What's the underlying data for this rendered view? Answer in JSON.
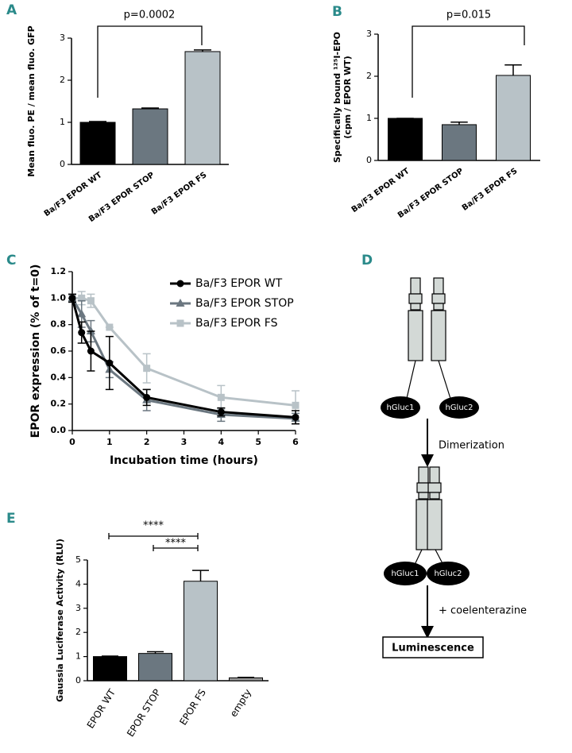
{
  "chart_data": [
    {
      "type": "bar",
      "panel": "A",
      "ylabel": [
        "Mean fluo. PE / mean fluo. GFP"
      ],
      "categories": [
        "Ba/F3 EPOR WT",
        "Ba/F3 EPOR STOP",
        "Ba/F3 EPOR FS"
      ],
      "values": [
        1.0,
        1.32,
        2.68
      ],
      "errors": [
        0.02,
        0.02,
        0.04
      ],
      "colors": [
        "#000000",
        "#6b7780",
        "#b8c2c7"
      ],
      "ylim": [
        0,
        3
      ],
      "yticks": [
        0,
        1,
        2,
        3
      ],
      "annotations": [
        "p=0.0002"
      ]
    },
    {
      "type": "bar",
      "panel": "B",
      "ylabel": [
        "Specifically bound ¹²⁵I-EPO",
        "(cpm / EPOR WT)"
      ],
      "categories": [
        "Ba/F3 EPOR WT",
        "Ba/F3 EPOR STOP",
        "Ba/F3 EPOR FS"
      ],
      "values": [
        1.0,
        0.85,
        2.02
      ],
      "errors": [
        0.0,
        0.06,
        0.25
      ],
      "colors": [
        "#000000",
        "#6b7780",
        "#b8c2c7"
      ],
      "ylim": [
        0,
        3
      ],
      "yticks": [
        0,
        1,
        2,
        3
      ],
      "annotations": [
        "p=0.015"
      ]
    },
    {
      "type": "line",
      "panel": "C",
      "xlabel": "Incubation time (hours)",
      "ylabel": [
        "EPOR expression  (% of t=0)"
      ],
      "x": [
        0,
        0.25,
        0.5,
        1,
        2,
        4,
        6
      ],
      "series": [
        {
          "name": "Ba/F3 EPOR WT",
          "color": "#000000",
          "marker": "circle",
          "values": [
            1.0,
            0.74,
            0.6,
            0.51,
            0.25,
            0.14,
            0.1
          ],
          "errors": [
            0.03,
            0.08,
            0.15,
            0.2,
            0.06,
            0.03,
            0.05
          ]
        },
        {
          "name": "Ba/F3 EPOR STOP",
          "color": "#6b7780",
          "marker": "triangle",
          "values": [
            1.0,
            0.88,
            0.75,
            0.46,
            0.23,
            0.12,
            0.09
          ],
          "errors": [
            0.03,
            0.1,
            0.08,
            0.06,
            0.08,
            0.05,
            0.04
          ]
        },
        {
          "name": "Ba/F3 EPOR FS",
          "color": "#b8c2c7",
          "marker": "square",
          "values": [
            1.0,
            1.0,
            0.98,
            0.78,
            0.47,
            0.25,
            0.19
          ],
          "errors": [
            0.03,
            0.05,
            0.05,
            0.0,
            0.11,
            0.09,
            0.11
          ]
        }
      ],
      "xlim": [
        0,
        6
      ],
      "xticks": [
        0,
        1,
        2,
        3,
        4,
        5,
        6
      ],
      "ylim": [
        0,
        1.2
      ],
      "yticks": [
        {
          "value": 0,
          "label": "0.0"
        },
        0.2,
        0.4,
        0.6,
        0.8,
        {
          "value": 1,
          "label": "1.0"
        },
        1.2
      ]
    },
    {
      "type": "bar",
      "panel": "E",
      "ylabel": [
        "Gaussia Luciferase Activity (RLU)"
      ],
      "categories": [
        "EPOR WT",
        "EPOR STOP",
        "EPOR FS",
        "empty"
      ],
      "values": [
        1.0,
        1.13,
        4.12,
        0.12
      ],
      "errors": [
        0.02,
        0.07,
        0.45,
        0.02
      ],
      "colors": [
        "#000000",
        "#6b7780",
        "#b8c2c7",
        "#9a9a9a"
      ],
      "ylim": [
        0,
        5
      ],
      "yticks": [
        0,
        1,
        2,
        3,
        4,
        5
      ],
      "annotations": [
        "****",
        "****"
      ]
    }
  ],
  "diagram": {
    "panel": "D",
    "labels": [
      "hGluc1",
      "hGluc2",
      "Dimerization",
      "hGluc1",
      "hGluc2",
      "+ coelenterazine",
      "Luminescence"
    ]
  }
}
